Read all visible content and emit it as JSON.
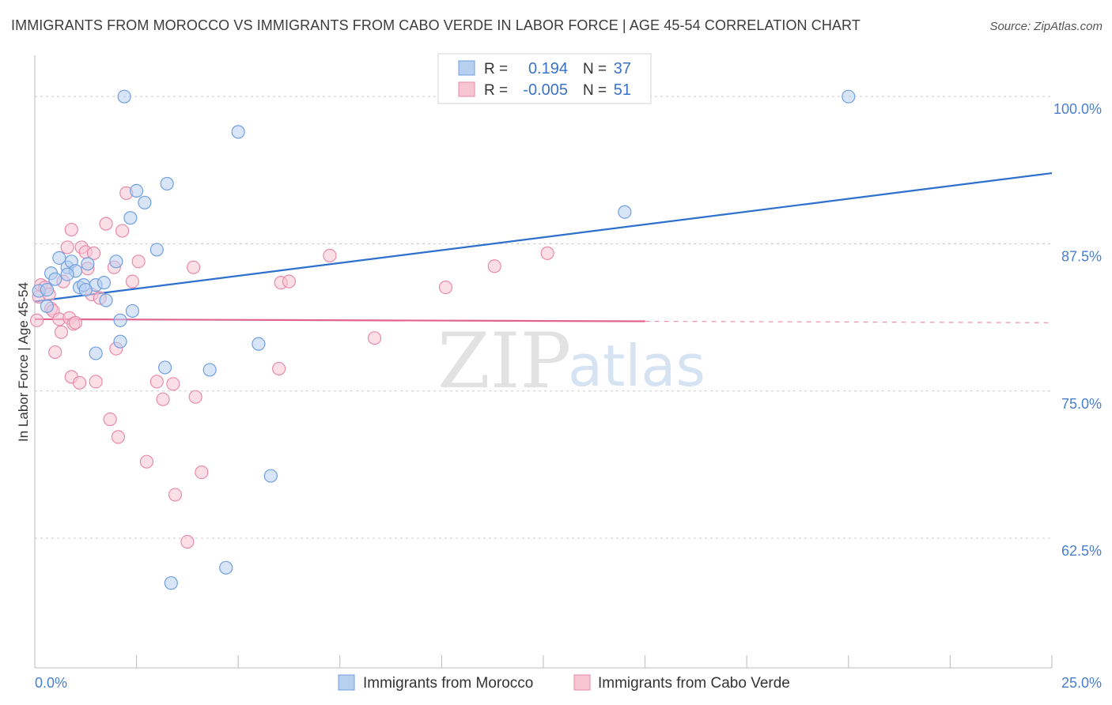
{
  "title": "IMMIGRANTS FROM MOROCCO VS IMMIGRANTS FROM CABO VERDE IN LABOR FORCE | AGE 45-54 CORRELATION CHART",
  "source": "Source: ZipAtlas.com",
  "watermark": {
    "zip": "ZIP",
    "atlas": "atlas"
  },
  "colors": {
    "morocco_fill": "#b8d0f0",
    "morocco_stroke": "#6f9fe0",
    "morocco_line": "#2d6fcc",
    "cabo_fill": "#f7c4d4",
    "cabo_stroke": "#e98aaa",
    "cabo_line": "#e0648e",
    "grid": "#cccccc",
    "tick_label": "#4a7fcf"
  },
  "legend": {
    "r_label": "R =",
    "n_label": "N =",
    "rows": [
      {
        "r": "0.194",
        "n": "37"
      },
      {
        "r": "-0.005",
        "n": "51"
      }
    ]
  },
  "chart_data": {
    "type": "scatter",
    "title": "IMMIGRANTS FROM MOROCCO VS IMMIGRANTS FROM CABO VERDE IN LABOR FORCE | AGE 45-54 CORRELATION CHART",
    "xlabel": "",
    "ylabel": "In Labor Force | Age 45-54",
    "xlim": [
      0,
      25
    ],
    "ylim": [
      51.5,
      103.5
    ],
    "x_tick_labels": [
      {
        "value": 0,
        "label": "0.0%"
      },
      {
        "value": 25,
        "label": "25.0%"
      }
    ],
    "x_minor_ticks": [
      2.5,
      5,
      7.5,
      10,
      12.5,
      15,
      17.5,
      20,
      22.5,
      25
    ],
    "y_ticks": [
      {
        "value": 100,
        "label": "100.0%"
      },
      {
        "value": 87.5,
        "label": "87.5%"
      },
      {
        "value": 75,
        "label": "75.0%"
      },
      {
        "value": 62.5,
        "label": "62.5%"
      }
    ],
    "series": [
      {
        "name": "Immigrants from Morocco",
        "r": 0.194,
        "n": 37,
        "trend": {
          "x0": 0,
          "y0": 82.6,
          "x1": 25,
          "y1": 93.5,
          "solid_to": 25
        },
        "points": [
          [
            0.1,
            83.5
          ],
          [
            0.3,
            83.6
          ],
          [
            0.4,
            85.0
          ],
          [
            0.5,
            84.5
          ],
          [
            0.6,
            86.3
          ],
          [
            0.8,
            85.5
          ],
          [
            0.9,
            86.0
          ],
          [
            1.0,
            85.2
          ],
          [
            1.1,
            83.8
          ],
          [
            1.2,
            84.0
          ],
          [
            1.3,
            85.8
          ],
          [
            1.5,
            84.0
          ],
          [
            1.7,
            84.2
          ],
          [
            1.75,
            82.7
          ],
          [
            1.5,
            78.2
          ],
          [
            2.0,
            86.0
          ],
          [
            2.1,
            79.2
          ],
          [
            2.1,
            81.0
          ],
          [
            2.2,
            100.0
          ],
          [
            2.35,
            89.7
          ],
          [
            2.4,
            81.8
          ],
          [
            2.5,
            92.0
          ],
          [
            2.7,
            91.0
          ],
          [
            3.0,
            87.0
          ],
          [
            3.2,
            77.0
          ],
          [
            3.25,
            92.6
          ],
          [
            3.35,
            58.7
          ],
          [
            4.3,
            76.8
          ],
          [
            4.7,
            60.0
          ],
          [
            5.0,
            97.0
          ],
          [
            5.5,
            79.0
          ],
          [
            5.8,
            67.8
          ],
          [
            14.5,
            90.2
          ],
          [
            20.0,
            100.0
          ],
          [
            1.25,
            83.6
          ],
          [
            0.8,
            84.9
          ],
          [
            0.3,
            82.2
          ]
        ]
      },
      {
        "name": "Immigrants from Cabo Verde",
        "r": -0.005,
        "n": 51,
        "trend": {
          "x0": 0,
          "y0": 81.1,
          "x1": 25,
          "y1": 80.8,
          "solid_to": 15
        },
        "points": [
          [
            0.05,
            81.0
          ],
          [
            0.1,
            83.0
          ],
          [
            0.15,
            84.0
          ],
          [
            0.25,
            83.8
          ],
          [
            0.35,
            83.2
          ],
          [
            0.4,
            82.0
          ],
          [
            0.45,
            81.8
          ],
          [
            0.5,
            78.3
          ],
          [
            0.6,
            81.1
          ],
          [
            0.65,
            80.0
          ],
          [
            0.7,
            84.3
          ],
          [
            0.8,
            87.2
          ],
          [
            0.85,
            81.2
          ],
          [
            0.9,
            88.7
          ],
          [
            0.9,
            76.2
          ],
          [
            0.95,
            80.7
          ],
          [
            1.0,
            80.8
          ],
          [
            1.1,
            75.7
          ],
          [
            1.15,
            87.2
          ],
          [
            1.25,
            86.8
          ],
          [
            1.3,
            85.4
          ],
          [
            1.4,
            83.2
          ],
          [
            1.45,
            86.7
          ],
          [
            1.5,
            75.8
          ],
          [
            1.6,
            82.9
          ],
          [
            1.75,
            89.2
          ],
          [
            1.85,
            72.6
          ],
          [
            1.95,
            85.5
          ],
          [
            2.0,
            78.6
          ],
          [
            2.05,
            71.1
          ],
          [
            2.15,
            88.6
          ],
          [
            2.25,
            91.8
          ],
          [
            2.4,
            84.3
          ],
          [
            2.55,
            86.0
          ],
          [
            2.75,
            69.0
          ],
          [
            3.0,
            75.8
          ],
          [
            3.15,
            74.3
          ],
          [
            3.4,
            75.6
          ],
          [
            3.45,
            66.2
          ],
          [
            3.75,
            62.2
          ],
          [
            3.95,
            74.5
          ],
          [
            3.9,
            85.5
          ],
          [
            4.1,
            68.1
          ],
          [
            6.05,
            84.2
          ],
          [
            6.25,
            84.3
          ],
          [
            6.0,
            76.9
          ],
          [
            7.25,
            86.5
          ],
          [
            8.35,
            79.5
          ],
          [
            10.1,
            83.8
          ],
          [
            11.3,
            85.6
          ],
          [
            12.6,
            86.7
          ]
        ]
      }
    ],
    "legend_position": "top-center"
  }
}
